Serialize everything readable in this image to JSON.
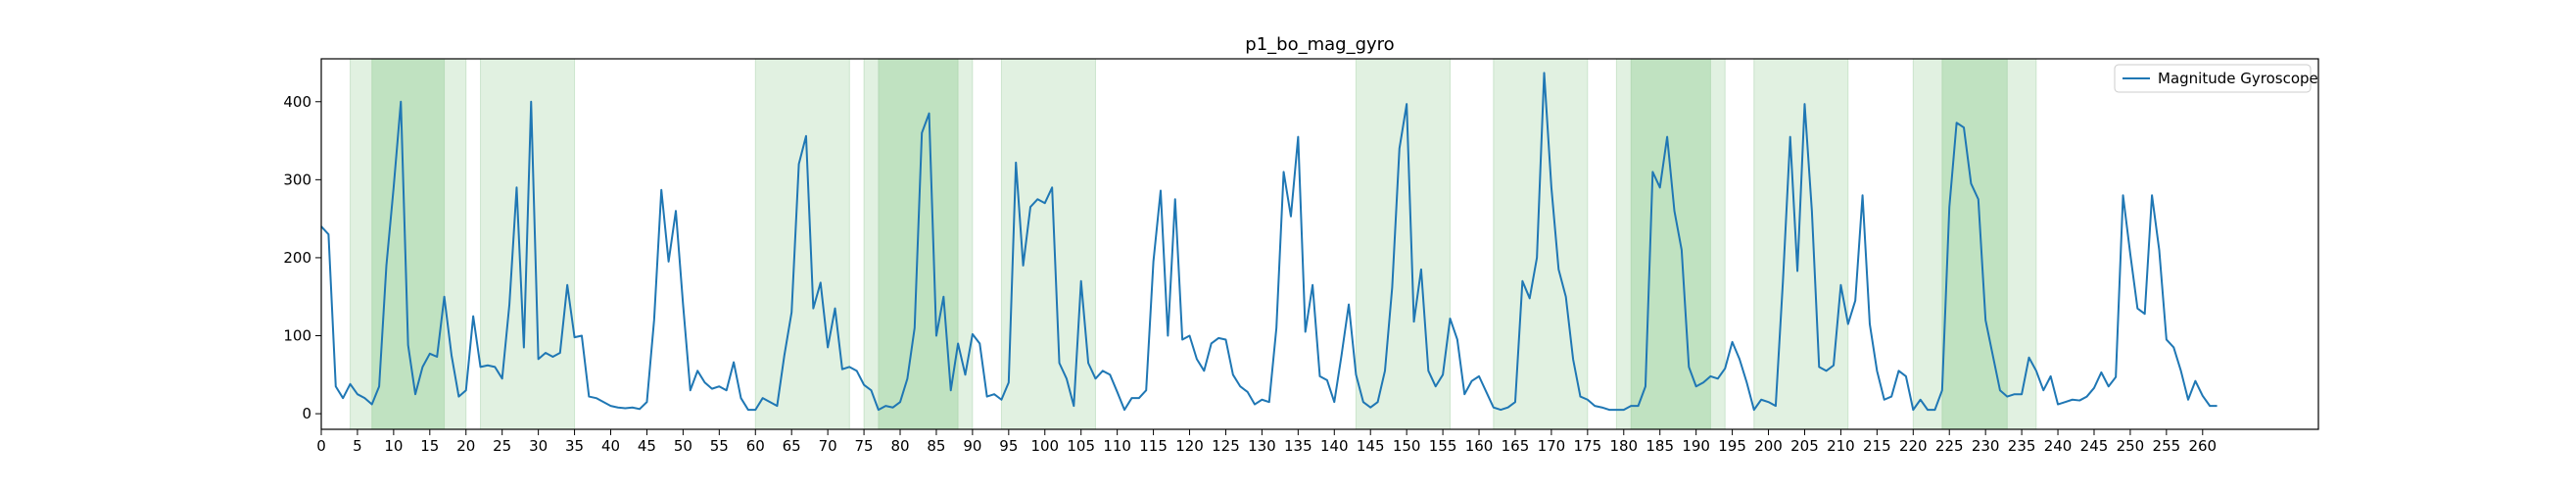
{
  "chart_data": {
    "type": "line",
    "title": "p1_bo_mag_gyro",
    "xlabel": "",
    "ylabel": "",
    "xlim": [
      0,
      276
    ],
    "ylim": [
      -20,
      455
    ],
    "x_ticks": [
      0,
      5,
      10,
      15,
      20,
      25,
      30,
      35,
      40,
      45,
      50,
      55,
      60,
      65,
      70,
      75,
      80,
      85,
      90,
      95,
      100,
      105,
      110,
      115,
      120,
      125,
      130,
      135,
      140,
      145,
      150,
      155,
      160,
      165,
      170,
      175,
      180,
      185,
      190,
      195,
      200,
      205,
      210,
      215,
      220,
      225,
      230,
      235,
      240,
      245,
      250,
      255,
      260
    ],
    "y_ticks": [
      0,
      100,
      200,
      300,
      400
    ],
    "grid": false,
    "legend": {
      "position": "top-right",
      "entries": [
        "Magnitude Gyroscope"
      ]
    },
    "line_color": "#1f77b4",
    "shaded_regions": [
      {
        "start": 4,
        "end": 20,
        "color": "#c8e6c9"
      },
      {
        "start": 7,
        "end": 17,
        "color": "#a5d6a7"
      },
      {
        "start": 22,
        "end": 35,
        "color": "#c8e6c9"
      },
      {
        "start": 60,
        "end": 73,
        "color": "#c8e6c9"
      },
      {
        "start": 75,
        "end": 90,
        "color": "#c8e6c9"
      },
      {
        "start": 77,
        "end": 88,
        "color": "#a5d6a7"
      },
      {
        "start": 94,
        "end": 107,
        "color": "#c8e6c9"
      },
      {
        "start": 143,
        "end": 156,
        "color": "#c8e6c9"
      },
      {
        "start": 162,
        "end": 175,
        "color": "#c8e6c9"
      },
      {
        "start": 179,
        "end": 194,
        "color": "#c8e6c9"
      },
      {
        "start": 181,
        "end": 192,
        "color": "#a5d6a7"
      },
      {
        "start": 198,
        "end": 211,
        "color": "#c8e6c9"
      },
      {
        "start": 220,
        "end": 237,
        "color": "#c8e6c9"
      },
      {
        "start": 224,
        "end": 233,
        "color": "#a5d6a7"
      }
    ],
    "series": [
      {
        "name": "Magnitude Gyroscope",
        "values": [
          240,
          230,
          35,
          20,
          38,
          25,
          20,
          12,
          35,
          190,
          290,
          400,
          88,
          25,
          60,
          77,
          73,
          150,
          75,
          22,
          30,
          125,
          60,
          62,
          60,
          45,
          140,
          290,
          85,
          400,
          70,
          78,
          73,
          78,
          165,
          98,
          100,
          22,
          20,
          15,
          10,
          8,
          7,
          8,
          6,
          15,
          120,
          287,
          195,
          260,
          140,
          30,
          55,
          40,
          32,
          35,
          30,
          66,
          20,
          5,
          5,
          20,
          15,
          10,
          75,
          130,
          320,
          356,
          135,
          168,
          85,
          135,
          57,
          60,
          55,
          37,
          30,
          5,
          10,
          8,
          15,
          45,
          110,
          360,
          385,
          100,
          150,
          30,
          90,
          50,
          102,
          90,
          22,
          25,
          18,
          40,
          322,
          190,
          265,
          275,
          270,
          290,
          65,
          45,
          10,
          170,
          65,
          45,
          55,
          50,
          28,
          5,
          20,
          20,
          30,
          195,
          286,
          100,
          275,
          95,
          100,
          70,
          55,
          90,
          97,
          95,
          50,
          35,
          28,
          12,
          18,
          15,
          110,
          310,
          253,
          355,
          105,
          165,
          48,
          43,
          15,
          75,
          140,
          50,
          15,
          8,
          15,
          55,
          162,
          340,
          397,
          118,
          185,
          55,
          35,
          50,
          122,
          95,
          25,
          42,
          48,
          28,
          8,
          5,
          8,
          15,
          170,
          148,
          200,
          437,
          290,
          185,
          150,
          70,
          22,
          18,
          10,
          8,
          5,
          5,
          5,
          10,
          10,
          35,
          310,
          290,
          355,
          260,
          210,
          60,
          35,
          40,
          48,
          45,
          58,
          92,
          70,
          40,
          5,
          18,
          15,
          10,
          170,
          355,
          183,
          397,
          260,
          60,
          55,
          62,
          165,
          115,
          145,
          280,
          115,
          55,
          18,
          22,
          55,
          48,
          5,
          18,
          5,
          5,
          30,
          265,
          373,
          367,
          295,
          275,
          120,
          75,
          30,
          22,
          25,
          25,
          72,
          55,
          30,
          48,
          12,
          15,
          18,
          17,
          22,
          33,
          53,
          35,
          47,
          280,
          205,
          135,
          128,
          280,
          210,
          95,
          85,
          55,
          18,
          42,
          23,
          10,
          10
        ]
      }
    ]
  }
}
